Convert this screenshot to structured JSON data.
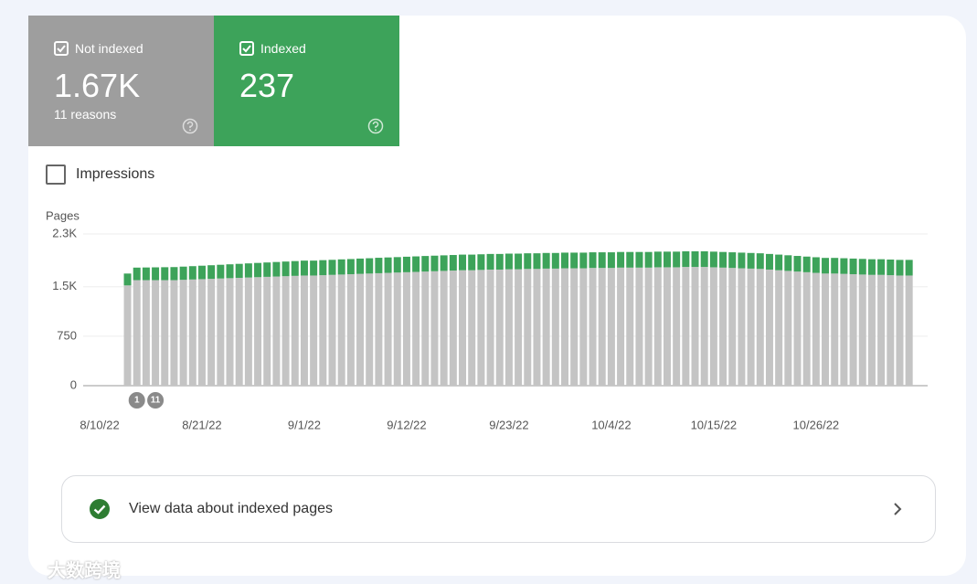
{
  "tiles": [
    {
      "value": "1.67K",
      "sub": "11 reasons",
      "color": "#9e9e9e"
    },
    {
      "value": "237",
      "color": "#3da35a"
    }
  ],
  "impressions_label": "Impressions",
  "chart_data": {
    "type": "bar",
    "stacked": true,
    "y_label": "Pages",
    "categories": [
      "8/10/22",
      null,
      null,
      null,
      null,
      null,
      null,
      null,
      null,
      null,
      null,
      "8/21/22",
      null,
      null,
      null,
      null,
      null,
      null,
      null,
      null,
      null,
      null,
      "9/1/22",
      null,
      null,
      null,
      null,
      null,
      null,
      null,
      null,
      null,
      null,
      "9/12/22",
      null,
      null,
      null,
      null,
      null,
      null,
      null,
      null,
      null,
      null,
      "9/23/22",
      null,
      null,
      null,
      null,
      null,
      null,
      null,
      null,
      null,
      null,
      "10/4/22",
      null,
      null,
      null,
      null,
      null,
      null,
      null,
      null,
      null,
      null,
      "10/15/22",
      null,
      null,
      null,
      null,
      null,
      null,
      null,
      null,
      null,
      null,
      "10/26/22",
      null,
      null,
      null,
      null,
      null,
      null,
      null,
      null,
      null,
      null
    ],
    "series": [
      {
        "name": "Not indexed",
        "color": "#c4c4c4",
        "values": [
          null,
          null,
          null,
          1520,
          1600,
          1600,
          1600,
          1600,
          1600,
          1605,
          1610,
          1615,
          1620,
          1625,
          1630,
          1635,
          1640,
          1645,
          1650,
          1655,
          1660,
          1665,
          1670,
          1670,
          1675,
          1680,
          1685,
          1690,
          1695,
          1700,
          1705,
          1710,
          1715,
          1720,
          1725,
          1730,
          1735,
          1740,
          1745,
          1750,
          1750,
          1755,
          1760,
          1760,
          1765,
          1765,
          1770,
          1770,
          1775,
          1775,
          1780,
          1780,
          1780,
          1785,
          1785,
          1785,
          1790,
          1790,
          1790,
          1790,
          1795,
          1795,
          1795,
          1800,
          1800,
          1800,
          1795,
          1790,
          1785,
          1780,
          1775,
          1770,
          1760,
          1750,
          1740,
          1730,
          1720,
          1710,
          1700,
          1700,
          1695,
          1690,
          1685,
          1680,
          1680,
          1675,
          1670,
          1670
        ]
      },
      {
        "name": "Indexed",
        "color": "#3da35a",
        "values": [
          null,
          null,
          null,
          180,
          190,
          192,
          194,
          196,
          198,
          200,
          202,
          204,
          206,
          208,
          210,
          212,
          214,
          216,
          218,
          220,
          222,
          224,
          226,
          226,
          228,
          228,
          230,
          230,
          232,
          232,
          234,
          234,
          234,
          235,
          235,
          236,
          236,
          236,
          236,
          237,
          237,
          237,
          237,
          237,
          237,
          237,
          237,
          237,
          237,
          237,
          237,
          237,
          237,
          237,
          237,
          237,
          237,
          237,
          237,
          237,
          237,
          237,
          237,
          237,
          237,
          237,
          237,
          237,
          237,
          237,
          237,
          237,
          237,
          237,
          237,
          237,
          237,
          237,
          237,
          237,
          237,
          237,
          237,
          237,
          237,
          237,
          237,
          237
        ]
      }
    ],
    "ylim": [
      0,
      2300
    ],
    "yticks": [
      0,
      750,
      {
        "value": 1500,
        "label": "1.5K"
      },
      {
        "value": 2300,
        "label": "2.3K"
      }
    ],
    "grid": true,
    "annotations": [
      {
        "label": "1",
        "index": 4
      },
      {
        "label": "11",
        "index": 6
      }
    ]
  },
  "link": "View data about indexed pages",
  "watermark": "大数跨境"
}
